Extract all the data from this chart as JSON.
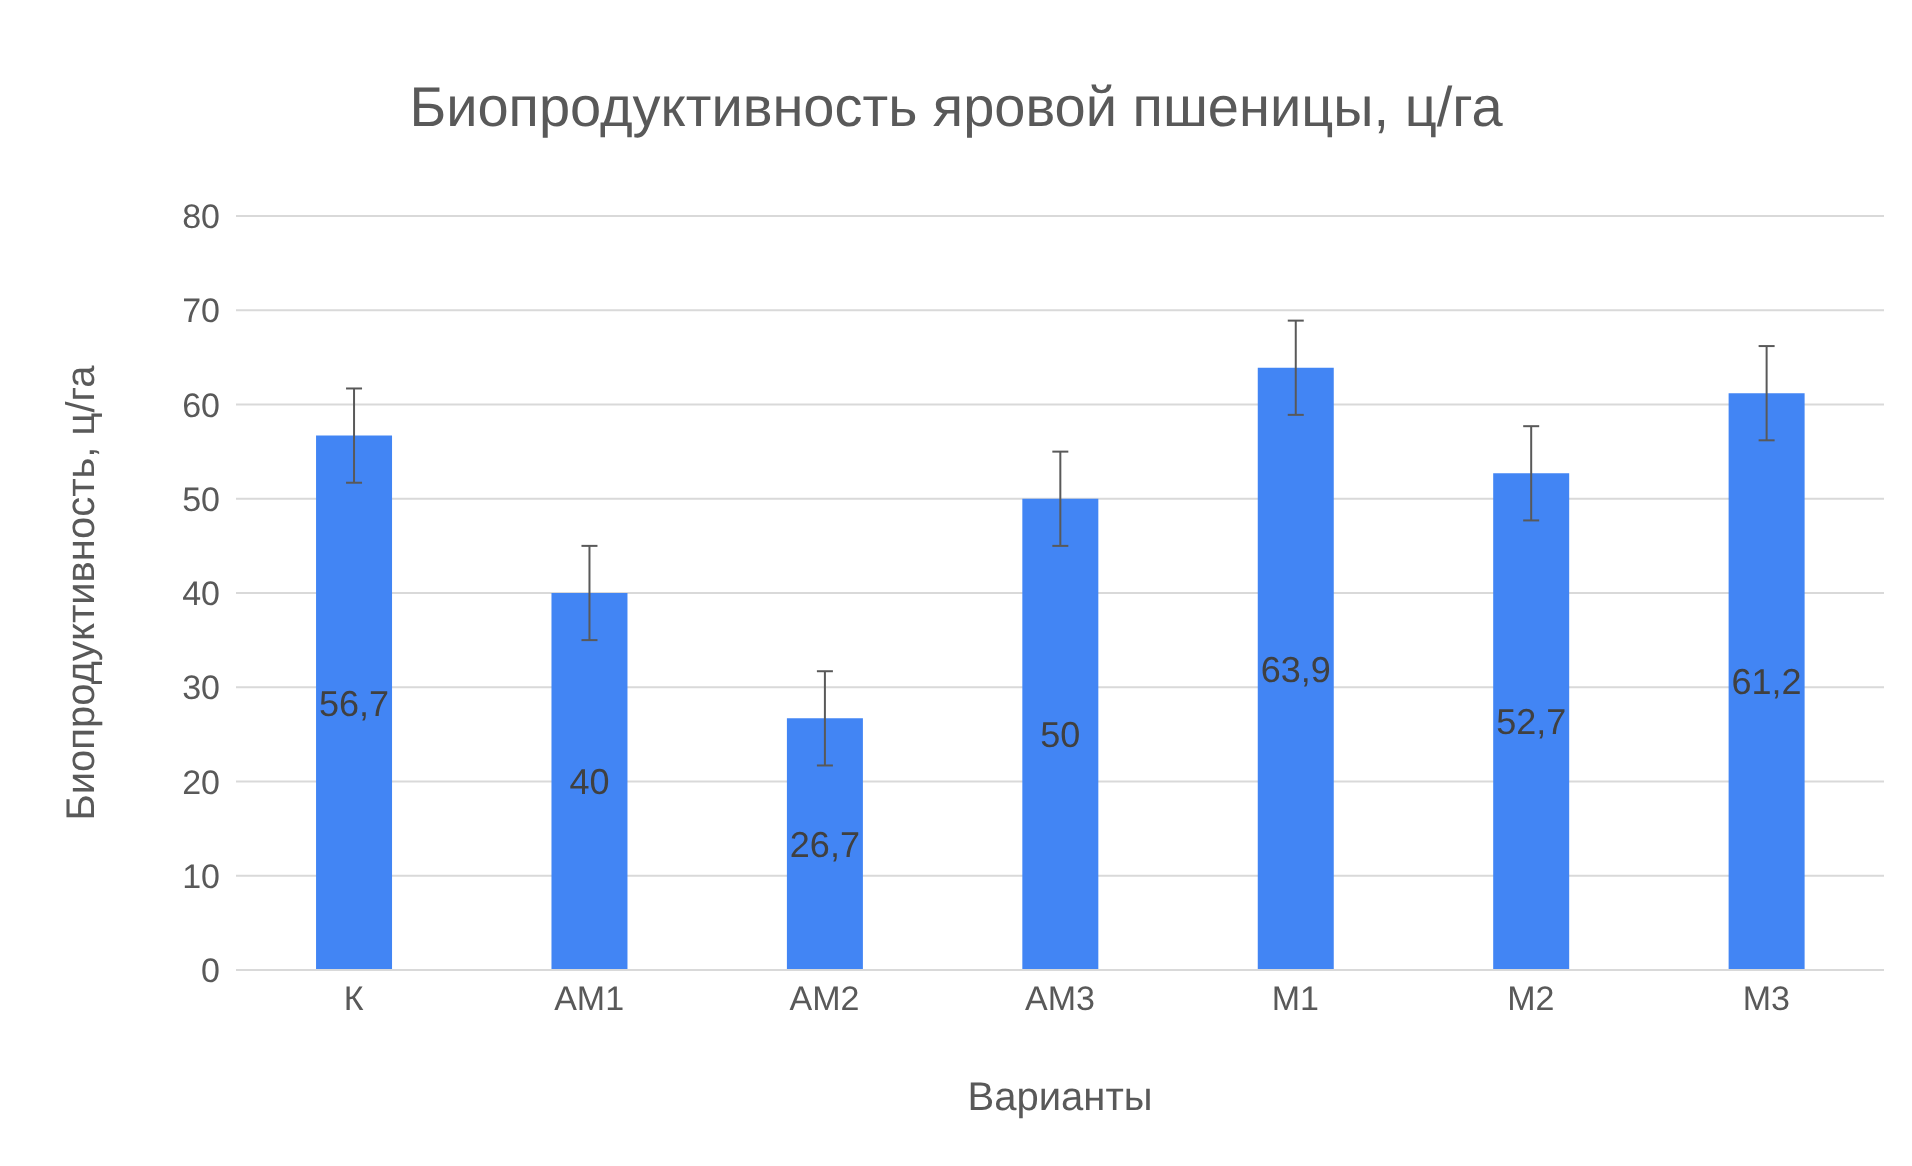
{
  "chart_data": {
    "type": "bar",
    "title": "Биопродуктивность  яровой пшеницы, ц/га",
    "xlabel": "Варианты",
    "ylabel": "Биопродуктивность, ц/га",
    "categories": [
      "К",
      "АМ1",
      "АМ2",
      "АМ3",
      "М1",
      "М2",
      "М3"
    ],
    "values": [
      56.7,
      40,
      26.7,
      50,
      63.9,
      52.7,
      61.2
    ],
    "errors": [
      5,
      5,
      5,
      5,
      5,
      5,
      5
    ],
    "value_labels": [
      "56,7",
      "40",
      "26,7",
      "50",
      "63,9",
      "52,7",
      "61,2"
    ],
    "color": "#4285f4",
    "ylim": [
      0,
      80
    ],
    "yticks": [
      0,
      10,
      20,
      30,
      40,
      50,
      60,
      70,
      80
    ],
    "grid": "y"
  }
}
